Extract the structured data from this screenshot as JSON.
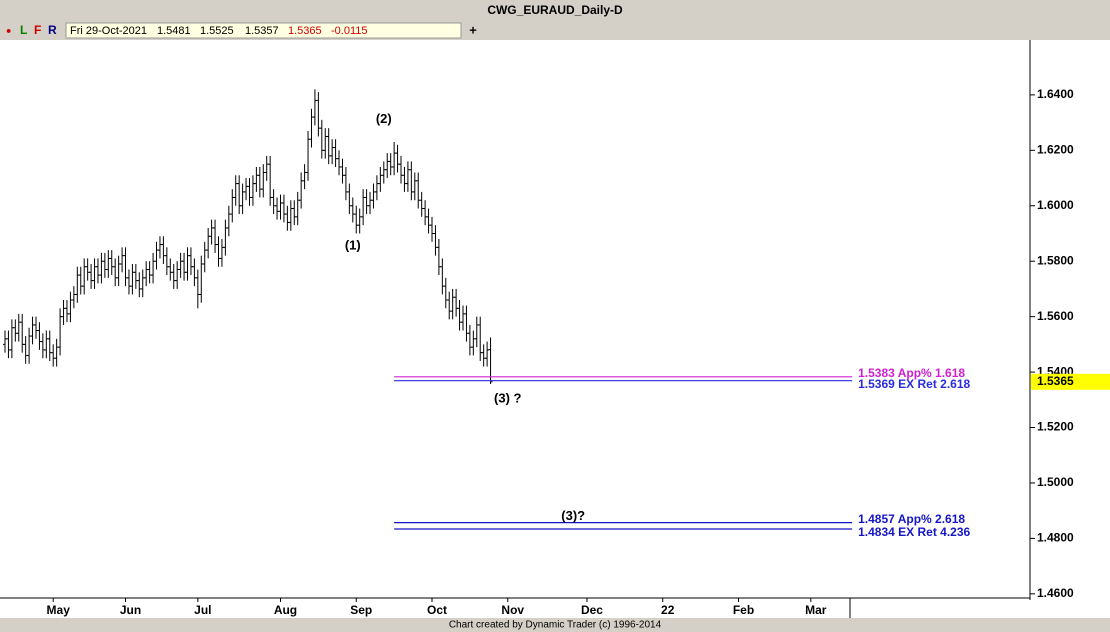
{
  "window": {
    "title": "CWG_EURAUD_Daily-D",
    "buttons": [
      {
        "text": "●",
        "color": "#cc0000"
      },
      {
        "text": "L",
        "color": "#008000"
      },
      {
        "text": "F",
        "color": "#cc0000"
      },
      {
        "text": "R",
        "color": "#000080"
      }
    ],
    "date": "Fri 29-Oct-2021",
    "change": -0.0115,
    "add": "+",
    "footer": "Chart created by Dynamic Trader  (c)  1996-2014"
  },
  "chart_data": {
    "type": "ohlc",
    "color": "#000000",
    "open": [
      1.55,
      1.552,
      1.548,
      1.556,
      1.554,
      1.558,
      1.55,
      1.546,
      1.553,
      1.557,
      1.555,
      1.551,
      1.548,
      1.552,
      1.547,
      1.545,
      1.549,
      1.56,
      1.563,
      1.561,
      1.566,
      1.568,
      1.575,
      1.571,
      1.578,
      1.576,
      1.573,
      1.578,
      1.575,
      1.58,
      1.577,
      1.581,
      1.578,
      1.574,
      1.579,
      1.582,
      1.574,
      1.571,
      1.576,
      1.573,
      1.57,
      1.574,
      1.577,
      1.575,
      1.58,
      1.584,
      1.586,
      1.582,
      1.578,
      1.576,
      1.573,
      1.577,
      1.58,
      1.576,
      1.582,
      1.578,
      1.574,
      1.568,
      1.579,
      1.584,
      1.589,
      1.592,
      1.586,
      1.581,
      1.585,
      1.592,
      1.597,
      1.603,
      1.608,
      1.6,
      1.605,
      1.607,
      1.603,
      1.608,
      1.611,
      1.606,
      1.612,
      1.615,
      1.603,
      1.6,
      1.598,
      1.601,
      1.597,
      1.594,
      1.599,
      1.596,
      1.602,
      1.609,
      1.612,
      1.624,
      1.632,
      1.638,
      1.628,
      1.62,
      1.625,
      1.618,
      1.621,
      1.617,
      1.614,
      1.611,
      1.605,
      1.6,
      1.597,
      1.593,
      1.596,
      1.603,
      1.6,
      1.602,
      1.605,
      1.608,
      1.611,
      1.613,
      1.616,
      1.614,
      1.619,
      1.615,
      1.611,
      1.608,
      1.613,
      1.605,
      1.609,
      1.602,
      1.599,
      1.596,
      1.593,
      1.59,
      1.585,
      1.578,
      1.571,
      1.566,
      1.562,
      1.567,
      1.563,
      1.558,
      1.561,
      1.554,
      1.549,
      1.552,
      1.557,
      1.547,
      1.545,
      1.5481
    ],
    "high": [
      1.555,
      1.555,
      1.559,
      1.559,
      1.561,
      1.561,
      1.553,
      1.556,
      1.56,
      1.56,
      1.558,
      1.554,
      1.555,
      1.555,
      1.55,
      1.552,
      1.563,
      1.566,
      1.566,
      1.569,
      1.571,
      1.578,
      1.578,
      1.581,
      1.581,
      1.579,
      1.581,
      1.581,
      1.583,
      1.583,
      1.584,
      1.584,
      1.581,
      1.582,
      1.585,
      1.585,
      1.577,
      1.579,
      1.579,
      1.576,
      1.577,
      1.58,
      1.58,
      1.583,
      1.587,
      1.589,
      1.589,
      1.585,
      1.581,
      1.579,
      1.58,
      1.583,
      1.583,
      1.585,
      1.585,
      1.581,
      1.577,
      1.582,
      1.587,
      1.592,
      1.595,
      1.595,
      1.589,
      1.588,
      1.595,
      1.6,
      1.606,
      1.611,
      1.611,
      1.608,
      1.61,
      1.61,
      1.611,
      1.614,
      1.614,
      1.615,
      1.618,
      1.618,
      1.606,
      1.603,
      1.604,
      1.604,
      1.6,
      1.602,
      1.602,
      1.605,
      1.612,
      1.615,
      1.627,
      1.635,
      1.642,
      1.641,
      1.631,
      1.628,
      1.628,
      1.624,
      1.624,
      1.62,
      1.617,
      1.614,
      1.608,
      1.603,
      1.6,
      1.599,
      1.606,
      1.606,
      1.605,
      1.608,
      1.611,
      1.614,
      1.616,
      1.619,
      1.619,
      1.623,
      1.622,
      1.618,
      1.614,
      1.616,
      1.616,
      1.612,
      1.612,
      1.605,
      1.602,
      1.599,
      1.596,
      1.593,
      1.588,
      1.581,
      1.574,
      1.569,
      1.57,
      1.57,
      1.566,
      1.564,
      1.564,
      1.557,
      1.555,
      1.56,
      1.56,
      1.55,
      1.551,
      1.5525
    ],
    "low": [
      1.547,
      1.545,
      1.545,
      1.551,
      1.551,
      1.547,
      1.543,
      1.543,
      1.55,
      1.552,
      1.548,
      1.545,
      1.545,
      1.544,
      1.542,
      1.542,
      1.546,
      1.557,
      1.558,
      1.558,
      1.563,
      1.565,
      1.568,
      1.568,
      1.573,
      1.57,
      1.57,
      1.572,
      1.572,
      1.574,
      1.574,
      1.575,
      1.571,
      1.571,
      1.576,
      1.571,
      1.568,
      1.568,
      1.57,
      1.567,
      1.567,
      1.571,
      1.572,
      1.572,
      1.577,
      1.581,
      1.579,
      1.575,
      1.573,
      1.57,
      1.57,
      1.574,
      1.573,
      1.573,
      1.575,
      1.571,
      1.563,
      1.565,
      1.576,
      1.581,
      1.586,
      1.583,
      1.578,
      1.578,
      1.582,
      1.589,
      1.594,
      1.6,
      1.597,
      1.597,
      1.602,
      1.6,
      1.6,
      1.605,
      1.603,
      1.603,
      1.609,
      1.6,
      1.597,
      1.595,
      1.595,
      1.594,
      1.591,
      1.591,
      1.593,
      1.593,
      1.599,
      1.606,
      1.609,
      1.621,
      1.629,
      1.625,
      1.617,
      1.617,
      1.615,
      1.615,
      1.614,
      1.611,
      1.608,
      1.602,
      1.597,
      1.594,
      1.59,
      1.59,
      1.593,
      1.597,
      1.597,
      1.599,
      1.602,
      1.605,
      1.608,
      1.61,
      1.611,
      1.611,
      1.612,
      1.608,
      1.605,
      1.605,
      1.602,
      1.602,
      1.599,
      1.596,
      1.593,
      1.59,
      1.587,
      1.582,
      1.575,
      1.568,
      1.563,
      1.559,
      1.559,
      1.56,
      1.555,
      1.555,
      1.551,
      1.546,
      1.546,
      1.549,
      1.544,
      1.542,
      1.542,
      1.5357
    ],
    "close": [
      1.552,
      1.548,
      1.556,
      1.554,
      1.558,
      1.55,
      1.546,
      1.553,
      1.557,
      1.555,
      1.551,
      1.548,
      1.552,
      1.547,
      1.545,
      1.549,
      1.56,
      1.563,
      1.561,
      1.566,
      1.568,
      1.575,
      1.571,
      1.578,
      1.576,
      1.573,
      1.578,
      1.575,
      1.58,
      1.577,
      1.581,
      1.578,
      1.574,
      1.579,
      1.582,
      1.574,
      1.571,
      1.576,
      1.573,
      1.57,
      1.574,
      1.577,
      1.575,
      1.58,
      1.584,
      1.586,
      1.582,
      1.578,
      1.576,
      1.573,
      1.577,
      1.58,
      1.576,
      1.582,
      1.578,
      1.574,
      1.568,
      1.579,
      1.584,
      1.589,
      1.592,
      1.586,
      1.581,
      1.585,
      1.592,
      1.597,
      1.603,
      1.608,
      1.6,
      1.605,
      1.607,
      1.603,
      1.608,
      1.611,
      1.606,
      1.612,
      1.615,
      1.603,
      1.6,
      1.598,
      1.601,
      1.597,
      1.594,
      1.599,
      1.596,
      1.602,
      1.609,
      1.612,
      1.624,
      1.632,
      1.638,
      1.628,
      1.62,
      1.625,
      1.618,
      1.621,
      1.617,
      1.614,
      1.611,
      1.605,
      1.6,
      1.597,
      1.593,
      1.596,
      1.603,
      1.6,
      1.602,
      1.605,
      1.608,
      1.611,
      1.613,
      1.616,
      1.614,
      1.619,
      1.615,
      1.611,
      1.608,
      1.613,
      1.605,
      1.609,
      1.602,
      1.599,
      1.596,
      1.593,
      1.59,
      1.585,
      1.578,
      1.571,
      1.566,
      1.562,
      1.567,
      1.563,
      1.558,
      1.561,
      1.554,
      1.549,
      1.552,
      1.557,
      1.547,
      1.545,
      1.548,
      1.5365
    ],
    "xlim": [
      -1.45,
      297.65
    ],
    "xticks": [
      {
        "value": 14,
        "label": "May"
      },
      {
        "value": 35,
        "label": "Jun"
      },
      {
        "value": 56,
        "label": "Jul"
      },
      {
        "value": 80,
        "label": "Aug"
      },
      {
        "value": 102,
        "label": "Sep"
      },
      {
        "value": 124,
        "label": "Oct"
      },
      {
        "value": 146,
        "label": "Nov"
      },
      {
        "value": 169,
        "label": "Dec"
      },
      {
        "value": 191,
        "label": "22"
      },
      {
        "value": 213,
        "label": "Feb"
      },
      {
        "value": 234,
        "label": "Mar"
      }
    ],
    "ylim": [
      1.4585,
      1.6598
    ],
    "yticks": [
      {
        "value": 1.46,
        "label": "1.4600"
      },
      {
        "value": 1.48,
        "label": "1.4800"
      },
      {
        "value": 1.5,
        "label": "1.5000"
      },
      {
        "value": 1.52,
        "label": "1.5200"
      },
      {
        "value": 1.54,
        "label": "1.5400"
      },
      {
        "value": 1.56,
        "label": "1.5600"
      },
      {
        "value": 1.58,
        "label": "1.5800"
      },
      {
        "value": 1.6,
        "label": "1.6000"
      },
      {
        "value": 1.62,
        "label": "1.6200"
      },
      {
        "value": 1.64,
        "label": "1.6400"
      }
    ],
    "levels": [
      {
        "value": 1.5383,
        "label": "1.5383 App% 1.618",
        "color": "#d020d0",
        "from": 113,
        "to": 246
      },
      {
        "value": 1.5369,
        "label": "1.5369 EX Ret 2.618",
        "color": "#2a2ae0",
        "from": 113,
        "to": 246
      },
      {
        "value": 1.4857,
        "label": "1.4857 App% 2.618",
        "color": "#1515c8",
        "from": 113,
        "to": 246
      },
      {
        "value": 1.4834,
        "label": "1.4834 EX Ret 4.236",
        "color": "#1515c8",
        "from": 113,
        "to": 246
      }
    ],
    "annotations": [
      {
        "text": "(1)",
        "x": 101,
        "y": 1.5855
      },
      {
        "text": "(2)",
        "x": 110,
        "y": 1.6311
      },
      {
        "text": "(3) ?",
        "x": 146,
        "y": 1.5303
      },
      {
        "text": "(3)?",
        "x": 165,
        "y": 1.4878
      }
    ],
    "price_box_color": "#ffff00"
  }
}
